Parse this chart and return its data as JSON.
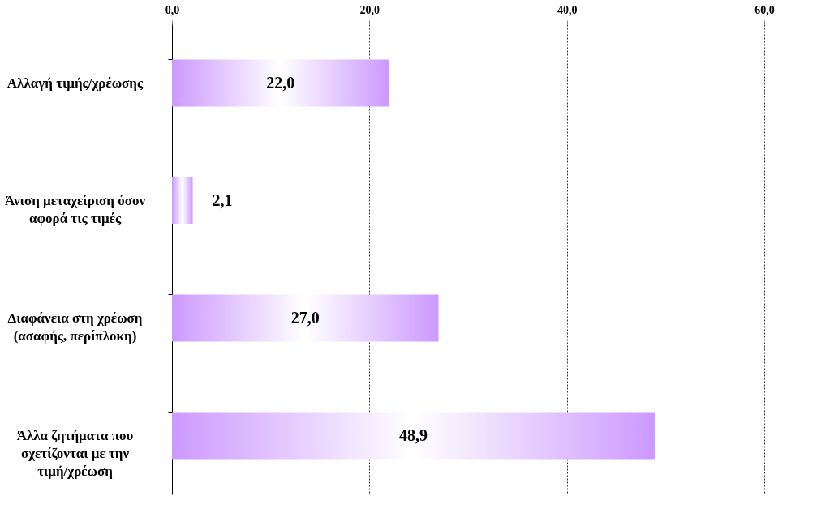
{
  "chart_data": {
    "type": "bar",
    "orientation": "horizontal",
    "categories": [
      "Αλλαγή τιμής/χρέωσης",
      "Άνιση μεταχείριση όσον αφορά τις τιμές",
      "Διαφάνεια στη χρέωση (ασαφής, περίπλοκη)",
      "Άλλα ζητήματα που σχετίζονται με την τιμή/χρέωση"
    ],
    "values": [
      22.0,
      2.1,
      27.0,
      48.9
    ],
    "value_labels": [
      "22,0",
      "2,1",
      "27,0",
      "48,9"
    ],
    "color": "#cc99ff",
    "xlim": [
      0,
      60
    ],
    "xticks": [
      {
        "value": 0,
        "label": "0,0"
      },
      {
        "value": 20,
        "label": "20,0"
      },
      {
        "value": 40,
        "label": "40,0"
      },
      {
        "value": 60,
        "label": "60,0"
      }
    ],
    "grid": "x"
  }
}
